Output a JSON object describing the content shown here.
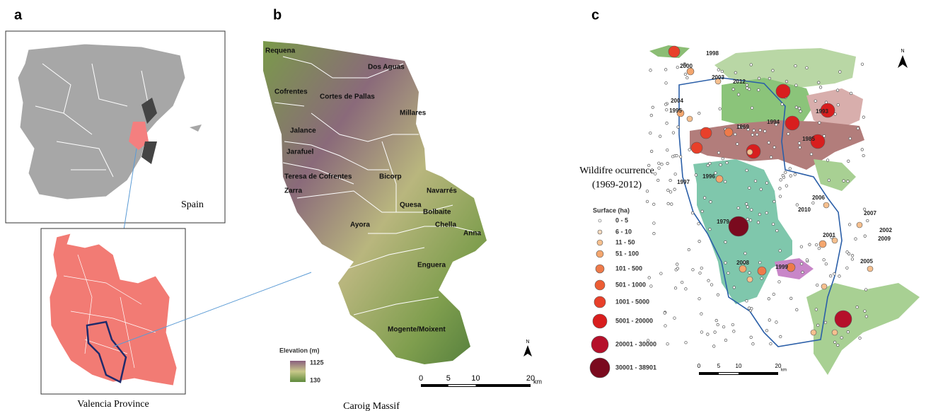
{
  "panel_a": {
    "label": "a",
    "country": "Spain",
    "caption": "Valencia Province"
  },
  "panel_b": {
    "label": "b",
    "municipalities": [
      "Requena",
      "Dos Aguas",
      "Cofrentes",
      "Cortes de Pallas",
      "Millares",
      "Jalance",
      "Jarafuel",
      "Teresa de Cofrentes",
      "Bicorp",
      "Zarra",
      "Navarrés",
      "Quesa",
      "Bolbaite",
      "Chella",
      "Ayora",
      "Anna",
      "Enguera",
      "Mogente/Moixent"
    ],
    "legend": {
      "title": "Elevation (m)",
      "max": "1125",
      "min": "130"
    },
    "scale": {
      "ticks": [
        "0",
        "5",
        "10",
        "20"
      ],
      "unit": "km"
    },
    "north": "N",
    "caption": "Caroig Massif"
  },
  "panel_c": {
    "label": "c",
    "title": "Wildifre ocurrence",
    "period": "(1969-2012)",
    "legend_title": "Surface (ha)",
    "classes": [
      "0 - 5",
      "6 - 10",
      "11 - 50",
      "51 - 100",
      "101 - 500",
      "501 - 1000",
      "1001 - 5000",
      "5001 - 20000",
      "20001 - 30000",
      "30001 - 38901"
    ],
    "years": [
      "1998",
      "2000",
      "2003",
      "2012",
      "2004",
      "1995",
      "1969",
      "1993",
      "1994",
      "1985",
      "1996",
      "1997",
      "2006",
      "2010",
      "2007",
      "2002",
      "2009",
      "2001",
      "1979",
      "2008",
      "1999",
      "2005"
    ],
    "scale": {
      "ticks": [
        "0",
        "5",
        "10",
        "20"
      ],
      "unit": "km"
    },
    "north": "N"
  }
}
